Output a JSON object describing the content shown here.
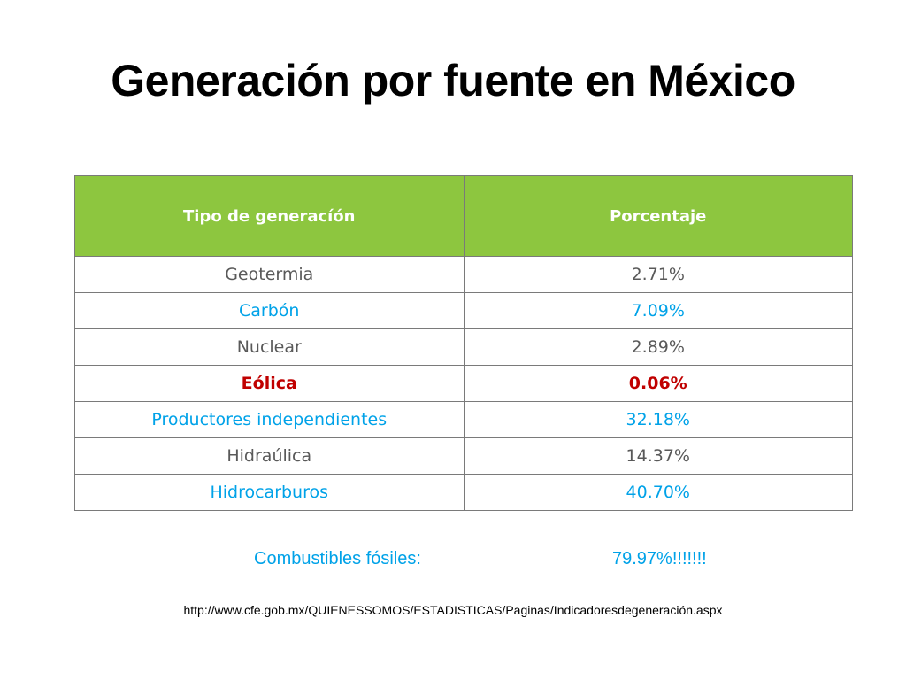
{
  "title": "Generación por fuente en México",
  "table": {
    "headers": [
      "Tipo de generacíón",
      "Porcentaje"
    ],
    "rows": [
      {
        "type": "Geotermia",
        "percent": "2.71%",
        "style": "gray"
      },
      {
        "type": "Carbón",
        "percent": "7.09%",
        "style": "blue"
      },
      {
        "type": "Nuclear",
        "percent": "2.89%",
        "style": "gray"
      },
      {
        "type": "Eólica",
        "percent": "0.06%",
        "style": "red"
      },
      {
        "type": "Productores independientes",
        "percent": "32.18%",
        "style": "blue"
      },
      {
        "type": "Hidraúlica",
        "percent": "14.37%",
        "style": "gray"
      },
      {
        "type": "Hidrocarburos",
        "percent": "40.70%",
        "style": "blue"
      }
    ]
  },
  "summary": {
    "label": "Combustibles fósiles:",
    "value": "79.97%!!!!!!!"
  },
  "source_url": "http://www.cfe.gob.mx/QUIENESSOMOS/ESTADISTICAS/Paginas/Indicadoresdegeneración.aspx",
  "colors": {
    "header_bg": "#8dc63f",
    "blue_text": "#00a2e8",
    "gray_text": "#595959",
    "red_text": "#c00000"
  }
}
